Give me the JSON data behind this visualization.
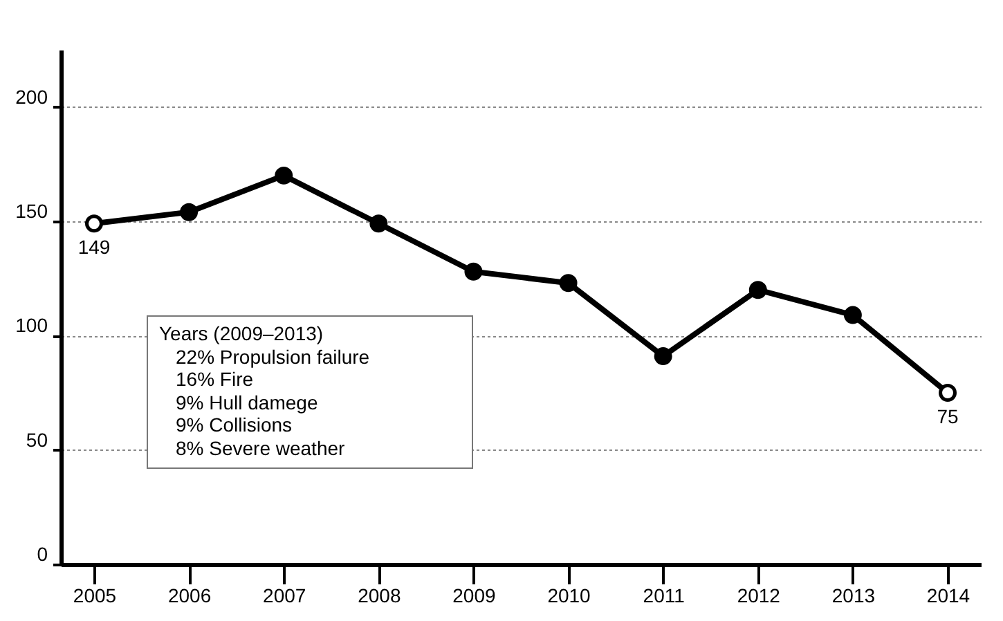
{
  "chart_data": {
    "type": "line",
    "categories": [
      "2005",
      "2006",
      "2007",
      "2008",
      "2009",
      "2010",
      "2011",
      "2012",
      "2013",
      "2014"
    ],
    "series": [
      {
        "color": "#000000",
        "values": [
          149,
          154,
          170,
          149,
          128,
          123,
          91,
          120,
          109,
          75
        ],
        "value_labels": [
          "149",
          null,
          null,
          null,
          null,
          null,
          null,
          null,
          null,
          "75"
        ]
      }
    ],
    "ylim": [
      0,
      225
    ],
    "yticks": [
      0,
      50,
      100,
      150,
      200
    ],
    "grid": "y",
    "marker": "circle",
    "line_style": "solid",
    "annotations": [
      "Years (2009–2013)",
      "22% Propulsion failure",
      "16% Fire",
      "9% Hull damege",
      "9% Collisions",
      "8% Severe weather"
    ]
  }
}
